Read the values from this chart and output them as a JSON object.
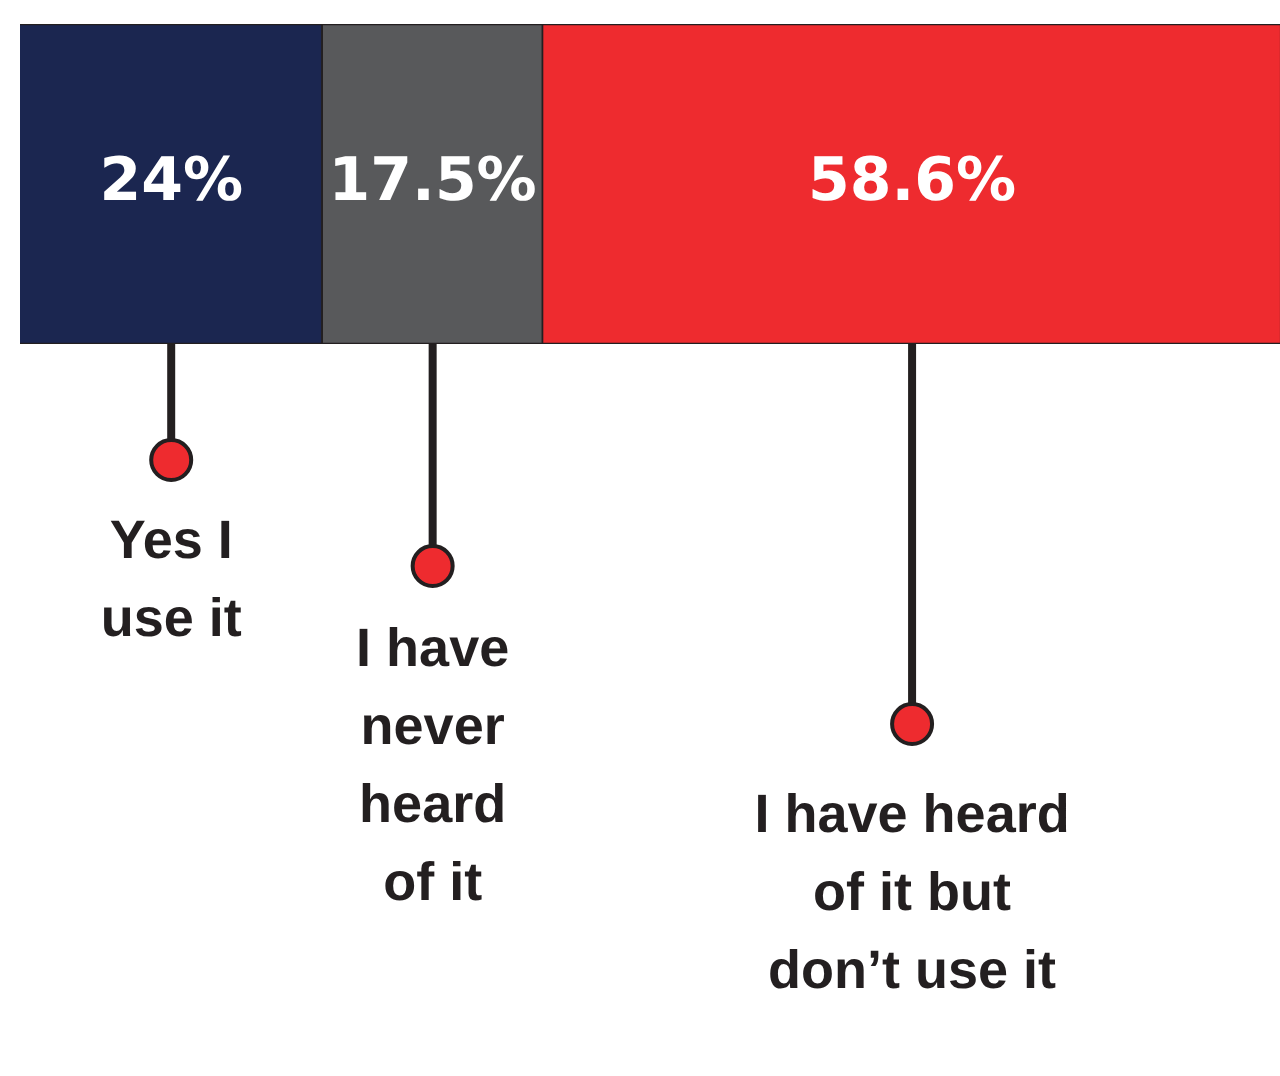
{
  "chart_data": {
    "type": "bar",
    "orientation": "horizontal",
    "stacked": true,
    "categories": [
      null
    ],
    "xlim": [
      0,
      100
    ],
    "tick_labels": false,
    "legend": false,
    "series": [
      {
        "name": "Yes I use it",
        "color": "#1b2650",
        "values": [
          24
        ],
        "value_labels": [
          "24%"
        ]
      },
      {
        "name": "I have never heard of it",
        "color": "#58595b",
        "values": [
          17.5
        ],
        "value_labels": [
          "17.5%"
        ]
      },
      {
        "name": "I have heard of it but don’t use it",
        "color": "#ee2b2f",
        "values": [
          58.6
        ],
        "value_labels": [
          "58.6%"
        ]
      }
    ]
  }
}
